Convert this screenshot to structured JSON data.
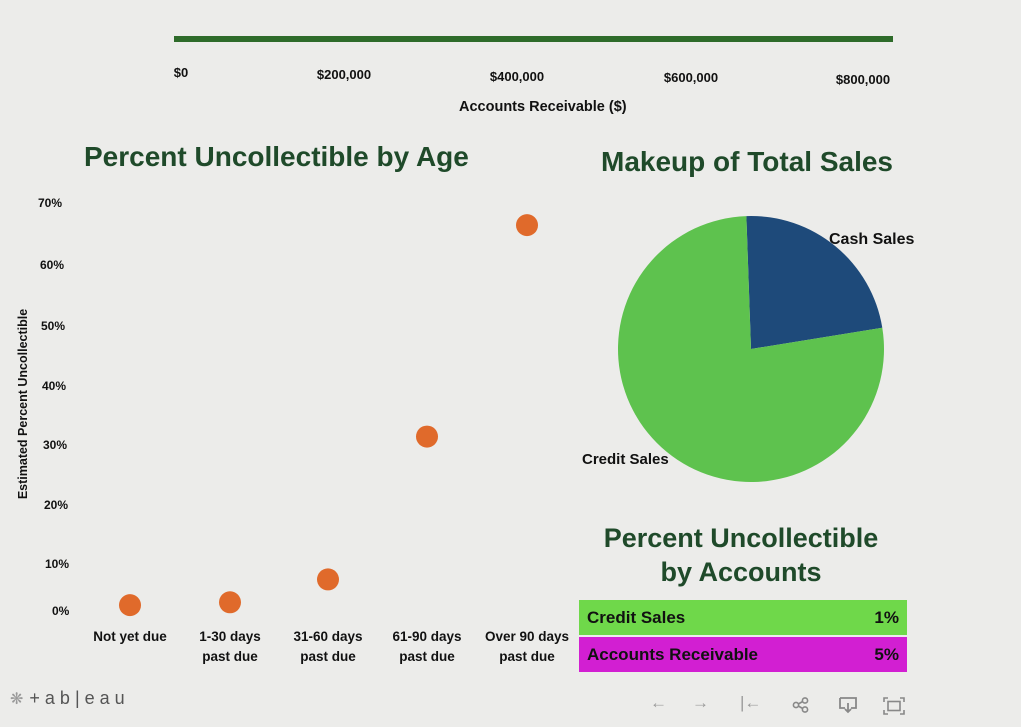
{
  "top_axis": {
    "ticks": [
      "$0",
      "$200,000",
      "$400,000",
      "$600,000",
      "$800,000"
    ],
    "label": "Accounts Receivable ($)",
    "range": [
      0,
      800000
    ],
    "bar_value": 800000,
    "bar_color": "#2e6b2a"
  },
  "scatter": {
    "title": "Percent Uncollectible by Age",
    "ylabel": "Estimated Percent Uncollectible",
    "yticks": [
      "70%",
      "60%",
      "50%",
      "40%",
      "30%",
      "20%",
      "10%",
      "0%"
    ],
    "marker_color": "#e06a2b"
  },
  "pie": {
    "title": "Makeup of Total Sales",
    "cash_label": "Cash Sales",
    "credit_label": "Credit Sales",
    "cash_color": "#1e4a7a",
    "credit_color": "#5ec24e"
  },
  "accounts_table": {
    "title_line1": "Percent Uncollectible",
    "title_line2": "by Accounts",
    "rows": [
      {
        "label": "Credit Sales",
        "value": "1%",
        "color": "#6fd84a"
      },
      {
        "label": "Accounts Receivable",
        "value": "5%",
        "color": "#d21fd2"
      }
    ]
  },
  "footer": {
    "brand": "+ a b | e a u",
    "icons": [
      "back-icon",
      "forward-icon",
      "rewind-icon",
      "share-icon",
      "download-icon",
      "fullscreen-icon"
    ]
  },
  "chart_data": [
    {
      "type": "scatter",
      "title": "Percent Uncollectible by Age",
      "xlabel": "",
      "ylabel": "Estimated Percent Uncollectible",
      "categories": [
        "Not yet due",
        "1-30 days past due",
        "31-60 days past due",
        "61-90 days past due",
        "Over 90 days past due"
      ],
      "category_lines": [
        [
          "Not yet due"
        ],
        [
          "1-30 days",
          "past due"
        ],
        [
          "31-60 days",
          "past due"
        ],
        [
          "61-90 days",
          "past due"
        ],
        [
          "Over 90 days",
          "past due"
        ]
      ],
      "values": [
        0.5,
        1,
        5,
        30,
        67
      ],
      "ylim": [
        0,
        70
      ],
      "grid": false
    },
    {
      "type": "pie",
      "title": "Makeup of Total Sales",
      "categories": [
        "Cash Sales",
        "Credit Sales"
      ],
      "values": [
        23,
        77
      ]
    },
    {
      "type": "bar",
      "title": "",
      "xlabel": "Accounts Receivable ($)",
      "categories": [
        "Accounts Receivable"
      ],
      "values": [
        800000
      ],
      "xlim": [
        0,
        800000
      ]
    },
    {
      "type": "table",
      "title": "Percent Uncollectible by Accounts",
      "categories": [
        "Credit Sales",
        "Accounts Receivable"
      ],
      "values": [
        "1%",
        "5%"
      ]
    }
  ]
}
